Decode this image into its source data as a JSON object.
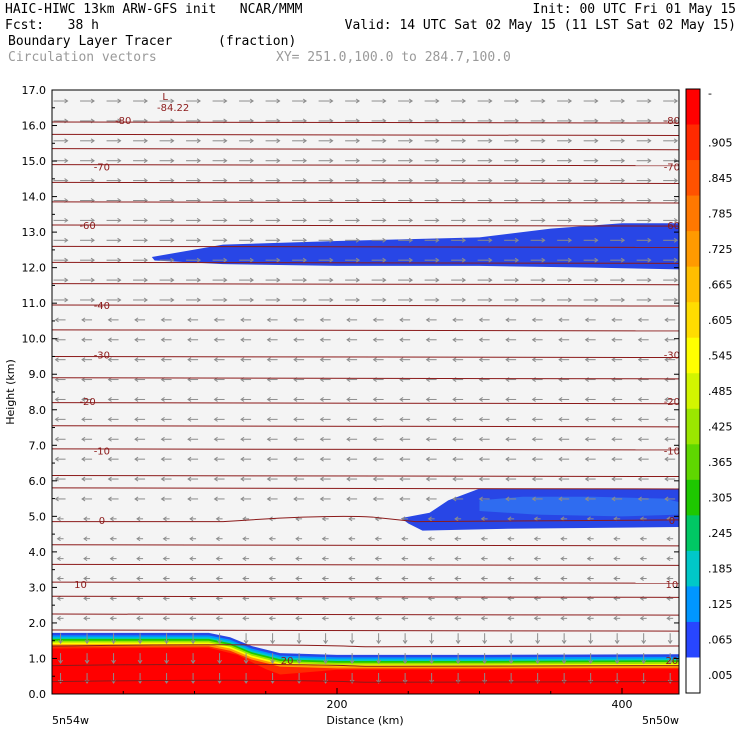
{
  "header": {
    "line1_left": "HAIC-HIWC 13km ARW-GFS init   NCAR/MMM",
    "line1_right": "Init: 00 UTC Fri 01 May 15",
    "line2_left": "Fcst:   38 h",
    "line2_right": "Valid: 14 UTC Sat 02 May 15 (11 LST Sat 02 May 15)",
    "field_name": "Boundary Layer Tracer",
    "field_units": "(fraction)",
    "vector_label": "Circulation vectors",
    "xsect_label": "XY= 251.0,100.0 to 284.7,100.0"
  },
  "chart_data": {
    "type": "heatmap",
    "ylabel": "Height (km)",
    "xlabel": "Distance (km)",
    "x_endpoints": [
      "5n54w",
      "5n50w"
    ],
    "xlim": [
      0,
      440
    ],
    "ylim": [
      0,
      17
    ],
    "x_ticks": [
      "200",
      "400"
    ],
    "y_ticks": [
      "0.0",
      "1.0",
      "2.0",
      "3.0",
      "4.0",
      "5.0",
      "6.0",
      "7.0",
      "8.0",
      "9.0",
      "10.0",
      "11.0",
      "12.0",
      "13.0",
      "14.0",
      "15.0",
      "16.0",
      "17.0"
    ],
    "colorbar": {
      "labels": [
        "-",
        ".905",
        ".845",
        ".785",
        ".725",
        ".665",
        ".605",
        ".545",
        ".485",
        ".425",
        ".365",
        ".305",
        ".245",
        ".185",
        ".125",
        ".065",
        ".005"
      ],
      "colors": [
        "#ff0000",
        "#ff2a00",
        "#ff5200",
        "#ff7800",
        "#ff9a00",
        "#ffbe00",
        "#ffdc00",
        "#ffff00",
        "#d2f500",
        "#9be600",
        "#5fd700",
        "#1ec800",
        "#00c864",
        "#00c8c8",
        "#0096ff",
        "#2846ff",
        "#ffffff"
      ]
    },
    "contour_labels": [
      {
        "text": "-80",
        "at_x": 50,
        "at_y": 16.15
      },
      {
        "text": "-80",
        "at_x": 435,
        "at_y": 16.15
      },
      {
        "text": "-70",
        "at_x": 35,
        "at_y": 14.85
      },
      {
        "text": "-70",
        "at_x": 435,
        "at_y": 14.85
      },
      {
        "text": "-60",
        "at_x": 25,
        "at_y": 13.2
      },
      {
        "text": "-60",
        "at_x": 435,
        "at_y": 13.2
      },
      {
        "text": "-40",
        "at_x": 35,
        "at_y": 10.95
      },
      {
        "text": "-30",
        "at_x": 35,
        "at_y": 9.55
      },
      {
        "text": "-30",
        "at_x": 435,
        "at_y": 9.55
      },
      {
        "text": "-20",
        "at_x": 25,
        "at_y": 8.25
      },
      {
        "text": "-20",
        "at_x": 435,
        "at_y": 8.25
      },
      {
        "text": "-10",
        "at_x": 35,
        "at_y": 6.85
      },
      {
        "text": "-10",
        "at_x": 435,
        "at_y": 6.85
      },
      {
        "text": "0",
        "at_x": 35,
        "at_y": 4.9
      },
      {
        "text": "0",
        "at_x": 435,
        "at_y": 4.9
      },
      {
        "text": "10",
        "at_x": 20,
        "at_y": 3.1
      },
      {
        "text": "10",
        "at_x": 435,
        "at_y": 3.1
      },
      {
        "text": "20",
        "at_x": 165,
        "at_y": 0.95
      },
      {
        "text": "20",
        "at_x": 435,
        "at_y": 0.95
      }
    ],
    "min_label": {
      "marker": "L",
      "value": "-84.22",
      "at_x": 85,
      "at_y": 16.6
    },
    "contour_levels_y": [
      0.35,
      0.8,
      1.35,
      1.8,
      2.25,
      2.75,
      3.15,
      3.65,
      4.2,
      4.85,
      5.8,
      6.15,
      6.9,
      7.55,
      8.2,
      8.9,
      9.5,
      10.25,
      10.95,
      11.55,
      12.15,
      12.6,
      13.2,
      13.85,
      14.4,
      14.9,
      15.35,
      15.75,
      16.1
    ]
  }
}
